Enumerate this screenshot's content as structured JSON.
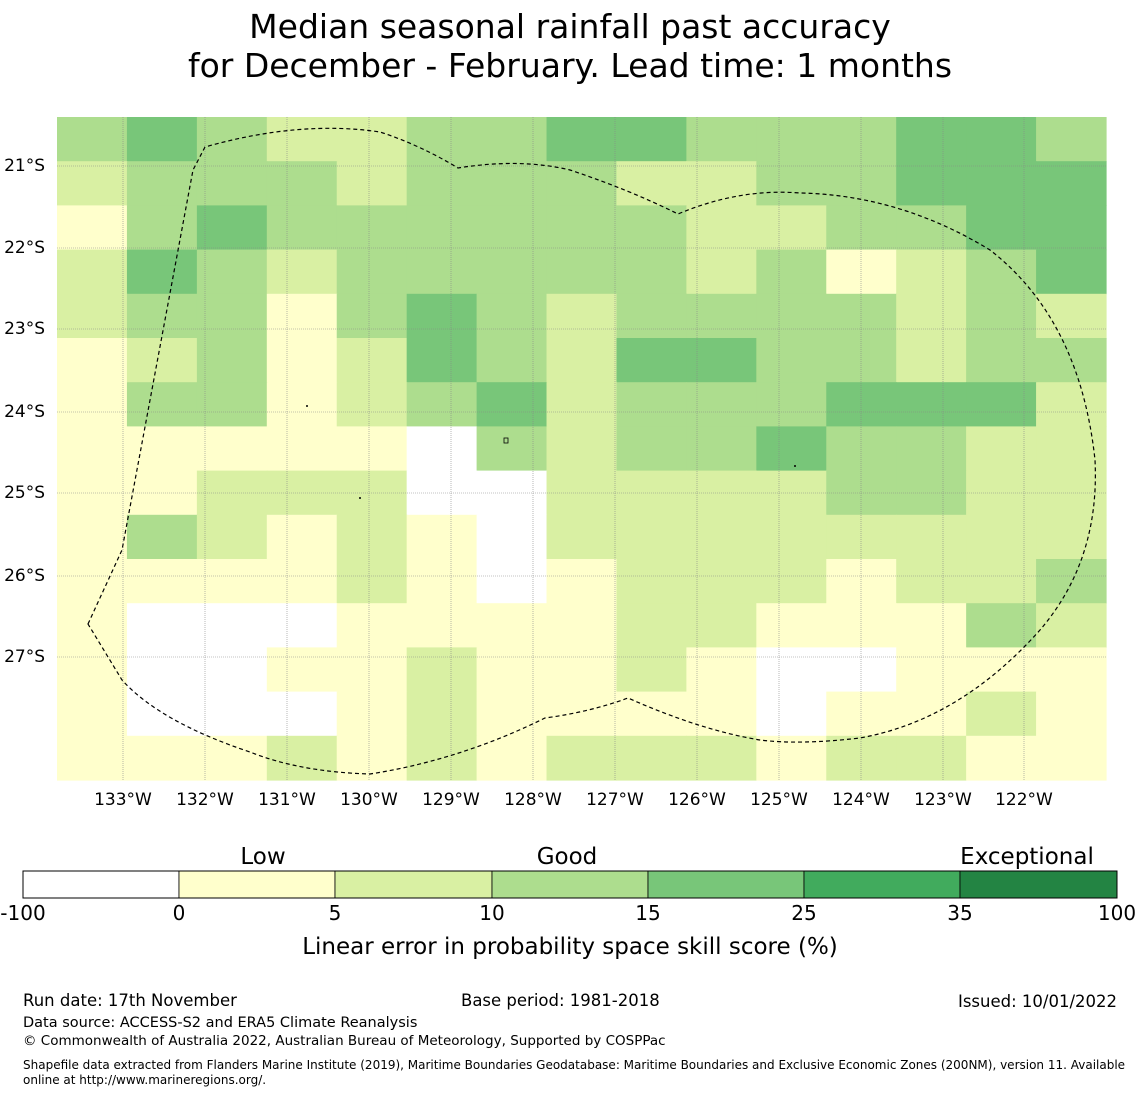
{
  "title": {
    "line1": "Median seasonal rainfall past accuracy",
    "line2": "for December - February. Lead time: 1 months"
  },
  "map": {
    "lat_labels": [
      "21°S",
      "22°S",
      "23°S",
      "24°S",
      "25°S",
      "26°S",
      "27°S"
    ],
    "lon_labels": [
      "133°W",
      "132°W",
      "131°W",
      "130°W",
      "129°W",
      "128°W",
      "127°W",
      "126°W",
      "125°W",
      "124°W",
      "123°W",
      "122°W"
    ],
    "background_color": "#ffffff",
    "boundary_style": "dashed",
    "grid": [
      [
        3,
        3,
        2,
        2,
        1,
        1,
        1,
        1,
        1,
        3,
        3,
        3,
        3,
        1,
        1,
        2,
        2,
        2,
        2,
        2,
        2,
        2,
        2,
        2,
        2,
        2,
        2,
        2,
        2,
        2,
        1,
        1,
        1,
        1,
        1,
        1,
        2,
        2,
        3,
        3,
        3,
        3,
        3,
        3,
        3,
        3,
        3,
        3,
        3,
        3,
        3,
        3,
        3,
        3,
        3,
        3,
        3,
        3,
        3,
        3,
        3,
        3,
        3,
        3,
        3,
        3,
        4,
        4,
        4,
        4,
        4,
        4,
        4,
        4,
        4,
        4,
        4,
        4,
        4,
        4,
        4,
        4,
        3,
        3,
        3,
        3,
        3,
        3
      ],
      [
        3,
        3,
        2,
        2,
        2,
        2,
        2,
        2,
        2,
        2,
        2,
        2,
        2,
        2,
        2,
        2,
        2,
        2,
        2,
        2,
        2,
        2,
        2,
        2,
        2,
        2,
        2,
        2,
        2,
        2,
        2,
        2,
        2,
        2,
        2,
        2,
        2,
        2,
        2,
        2,
        2,
        2,
        2,
        2,
        2,
        2,
        2,
        2,
        2,
        2,
        2,
        2,
        2,
        2,
        2,
        2,
        3,
        3,
        3,
        3,
        3,
        3,
        3,
        3,
        3,
        3,
        3,
        3,
        4,
        4,
        4,
        4,
        4,
        4,
        4,
        4,
        4,
        4,
        4,
        4,
        4,
        4,
        4,
        4,
        4,
        4,
        4,
        4
      ],
      [
        1,
        1,
        3,
        3,
        3,
        3,
        3,
        3,
        3,
        3,
        3,
        3,
        3,
        3,
        3,
        3,
        3,
        3,
        3,
        3,
        3,
        3,
        3,
        3,
        3,
        3,
        3,
        3,
        3,
        3,
        3,
        3,
        3,
        3,
        3,
        3,
        3,
        3,
        3,
        3,
        3,
        3,
        3,
        3,
        3,
        3,
        3,
        3,
        3,
        3,
        3,
        3,
        3,
        3,
        3,
        3,
        3,
        3,
        3,
        3,
        3,
        3,
        3,
        3,
        3,
        3,
        3,
        3,
        3,
        3,
        3,
        3,
        3,
        3,
        3,
        3,
        3,
        3,
        3,
        3,
        3,
        3,
        4,
        4,
        4,
        4,
        4,
        4
      ],
      [
        2,
        2,
        3,
        3,
        3,
        3,
        3,
        3,
        3,
        3,
        3,
        3,
        3,
        3,
        3,
        3,
        3,
        3,
        3,
        3,
        3,
        3,
        3,
        3,
        3,
        3,
        3,
        3,
        3,
        3,
        3,
        3,
        3,
        3,
        3,
        3,
        3,
        3,
        3,
        3,
        3,
        3,
        3,
        3,
        3,
        3,
        3,
        3,
        3,
        3,
        3,
        3,
        3,
        3,
        3,
        3,
        3,
        3,
        3,
        3,
        3,
        3,
        3,
        3,
        3,
        3,
        3,
        3,
        3,
        3,
        3,
        3,
        3,
        3,
        3,
        3,
        3,
        3,
        3,
        3,
        3,
        3,
        4,
        4,
        4,
        4,
        4,
        4
      ],
      [
        2,
        2,
        2,
        2,
        2,
        2,
        2,
        2,
        2,
        2,
        2,
        2,
        2,
        2,
        2,
        2,
        2,
        2,
        2,
        2,
        2,
        2,
        2,
        2,
        2,
        2,
        2,
        2,
        2,
        2,
        2,
        2,
        2,
        2,
        2,
        2,
        2,
        2,
        2,
        2,
        2,
        2,
        2,
        2,
        2,
        2,
        2,
        2,
        2,
        2,
        2,
        2,
        2,
        2,
        2,
        2,
        2,
        2,
        2,
        2,
        2,
        2,
        2,
        2,
        2,
        2,
        2,
        2,
        2,
        2,
        2,
        2,
        2,
        2,
        2,
        2,
        2,
        2,
        2,
        2,
        2,
        2,
        2,
        2,
        2,
        2,
        2,
        2
      ],
      [
        1,
        1,
        1,
        1,
        1,
        1,
        1,
        1,
        1,
        1,
        1,
        1,
        1,
        1,
        1,
        1,
        1,
        1,
        1,
        1,
        1,
        1,
        1,
        1,
        1,
        1,
        1,
        1,
        1,
        1,
        1,
        1,
        1,
        1,
        1,
        1,
        1,
        1,
        1,
        1,
        1,
        1,
        1,
        1,
        1,
        1,
        1,
        1,
        1,
        1,
        1,
        1,
        1,
        1,
        1,
        1,
        1,
        1,
        1,
        1,
        1,
        1,
        1,
        1,
        1,
        1,
        1,
        1,
        1,
        1,
        1,
        1,
        1,
        1,
        1,
        1,
        1,
        1,
        1,
        1,
        1,
        1,
        1,
        1,
        1,
        1,
        1,
        1
      ],
      [
        1,
        1,
        1,
        1,
        1,
        1,
        1,
        1,
        1,
        1,
        1,
        1,
        1,
        1,
        1,
        1,
        1,
        1,
        1,
        1,
        1,
        1,
        1,
        1,
        1,
        1,
        1,
        1,
        1,
        1,
        1,
        1,
        1,
        1,
        1,
        1,
        1,
        1,
        1,
        1,
        1,
        1,
        1,
        1,
        1,
        1,
        1,
        1,
        1,
        1,
        1,
        1,
        1,
        1,
        1,
        1,
        1,
        1,
        1,
        1,
        1,
        1,
        1,
        1,
        1,
        1,
        1,
        1,
        1,
        1,
        1,
        1,
        1,
        1,
        1,
        1,
        1,
        1,
        1,
        1,
        1,
        1,
        1,
        1,
        1,
        1,
        1,
        1
      ]
    ],
    "grid_note_unused": "",
    "cells": [
      [
        2,
        3,
        2,
        1,
        1,
        2,
        2,
        3,
        3,
        2,
        2,
        2,
        3,
        3,
        2
      ],
      [
        1,
        2,
        2,
        2,
        1,
        2,
        2,
        2,
        1,
        1,
        2,
        2,
        3,
        3,
        3
      ],
      [
        0,
        2,
        3,
        2,
        2,
        2,
        2,
        2,
        2,
        1,
        1,
        2,
        2,
        3,
        3
      ],
      [
        1,
        3,
        2,
        1,
        2,
        2,
        2,
        2,
        2,
        1,
        2,
        0,
        1,
        2,
        3
      ],
      [
        1,
        2,
        2,
        0,
        2,
        3,
        2,
        1,
        2,
        2,
        2,
        2,
        1,
        2,
        1
      ],
      [
        0,
        1,
        2,
        0,
        1,
        3,
        2,
        1,
        3,
        3,
        2,
        2,
        1,
        2,
        2
      ],
      [
        0,
        2,
        2,
        0,
        1,
        2,
        3,
        1,
        2,
        2,
        2,
        3,
        3,
        3,
        1
      ],
      [
        0,
        0,
        0,
        0,
        0,
        -1,
        2,
        1,
        2,
        2,
        3,
        2,
        2,
        1,
        1
      ],
      [
        0,
        0,
        1,
        1,
        1,
        -1,
        -1,
        1,
        1,
        1,
        1,
        2,
        2,
        1,
        1
      ],
      [
        0,
        2,
        1,
        0,
        1,
        0,
        -1,
        1,
        1,
        1,
        1,
        1,
        1,
        1,
        1
      ],
      [
        0,
        0,
        0,
        0,
        1,
        0,
        -1,
        0,
        1,
        1,
        1,
        0,
        1,
        1,
        2
      ],
      [
        0,
        -1,
        -1,
        -1,
        0,
        0,
        0,
        0,
        1,
        1,
        0,
        0,
        0,
        2,
        1
      ],
      [
        0,
        -1,
        -1,
        0,
        0,
        1,
        0,
        0,
        1,
        0,
        -1,
        -1,
        0,
        0,
        0
      ],
      [
        0,
        -1,
        -1,
        -1,
        0,
        1,
        0,
        0,
        0,
        0,
        -1,
        0,
        0,
        1,
        0
      ],
      [
        0,
        0,
        0,
        1,
        0,
        1,
        0,
        1,
        1,
        1,
        0,
        1,
        1,
        0,
        0
      ]
    ]
  },
  "colorbar": {
    "categories": [
      "Low",
      "Good",
      "Exceptional"
    ],
    "tick_labels": [
      "-100",
      "0",
      "5",
      "10",
      "15",
      "25",
      "35",
      "100"
    ],
    "colors": [
      "#ffffff",
      "#ffffcc",
      "#d9f0a3",
      "#addd8e",
      "#78c679",
      "#41ab5d",
      "#238443"
    ],
    "label": "Linear error in probability space skill score (%)"
  },
  "footer": {
    "run_date": "Run date: 17th November",
    "base_period": "Base period: 1981-2018",
    "issued": "Issued: 10/01/2022",
    "data_source": "Data source: ACCESS-S2 and ERA5 Climate Reanalysis",
    "copyright": "© Commonwealth of Australia 2022, Australian Bureau of Meteorology, Supported by COSPPac",
    "shapefile": "Shapefile data extracted from Flanders Marine Institute (2019), Maritime Boundaries Geodatabase: Maritime Boundaries and Exclusive Economic Zones (200NM), version 11. Available online at http://www.marineregions.org/."
  }
}
